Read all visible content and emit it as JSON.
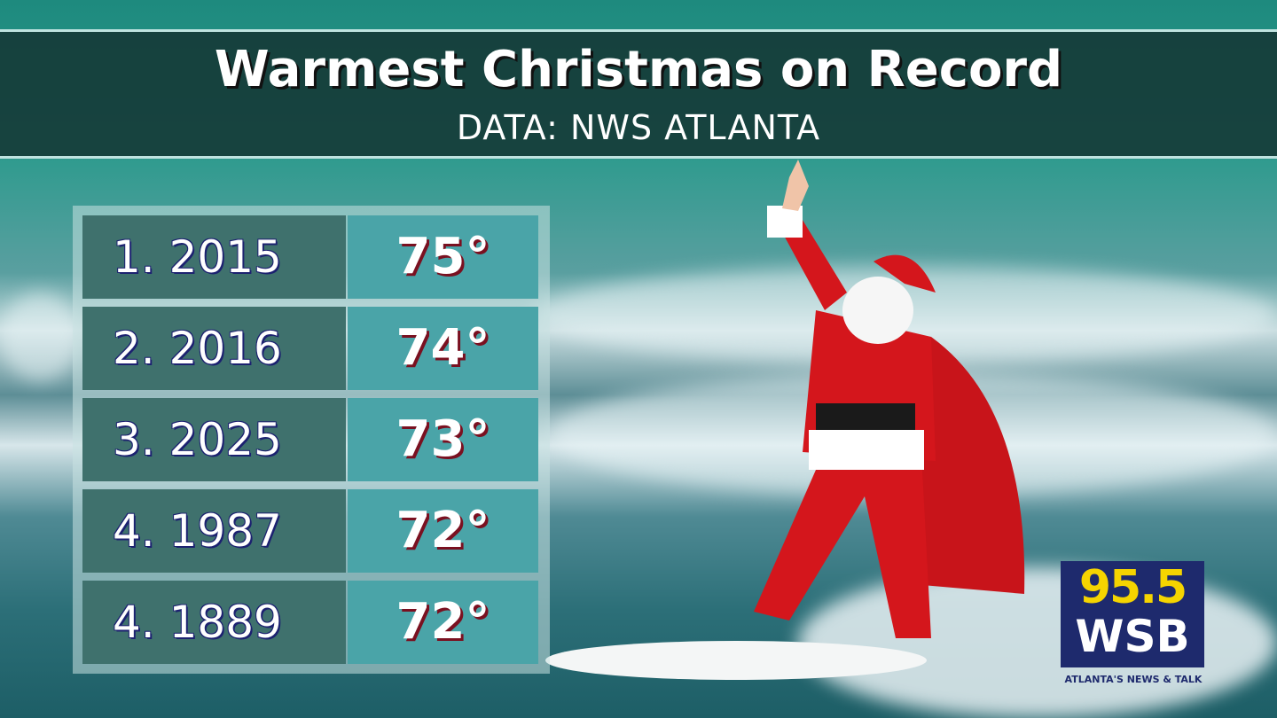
{
  "header": {
    "title": "Warmest Christmas on Record",
    "subtitle": "DATA:  NWS ATLANTA"
  },
  "table": {
    "rows": [
      [
        "1. 2015",
        "75°"
      ],
      [
        "2. 2016",
        "74°"
      ],
      [
        "3. 2025",
        "73°"
      ],
      [
        "4. 1987",
        "72°"
      ],
      [
        "4. 1889",
        "72°"
      ]
    ]
  },
  "logo": {
    "frequency": "95.5",
    "station": "WSB",
    "tagline": "ATLANTA'S NEWS & TALK"
  }
}
